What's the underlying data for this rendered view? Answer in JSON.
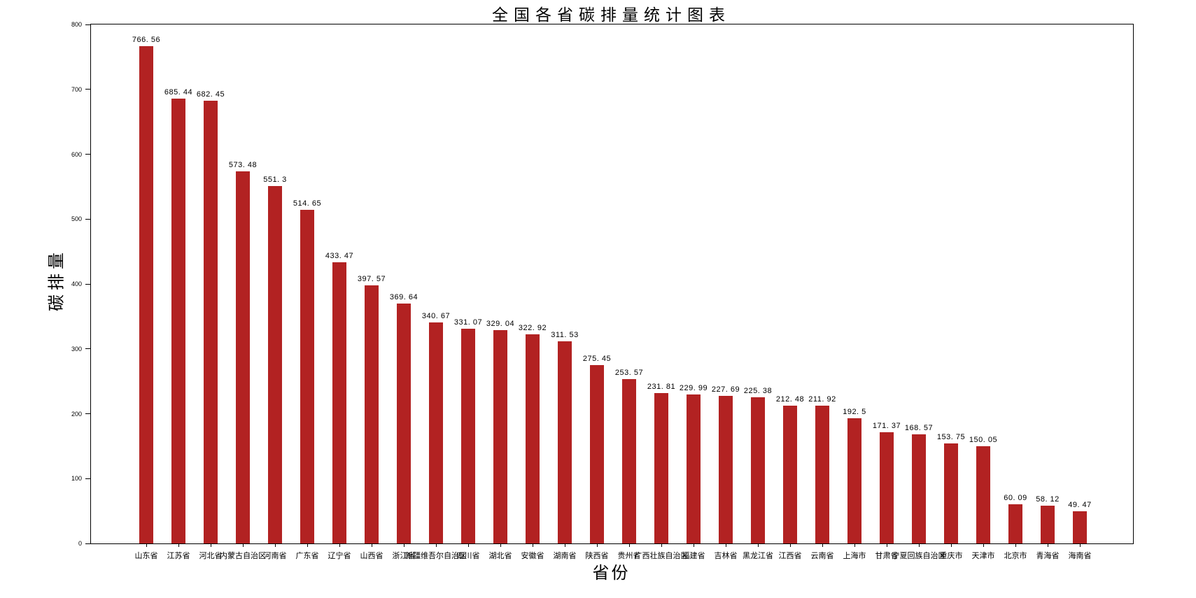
{
  "chart_data": {
    "type": "bar",
    "title": "全国各省碳排量统计图表",
    "xlabel": "省份",
    "ylabel": "碳排量",
    "bar_color": "#b22222",
    "text_color": "#000000",
    "background_color": "#ffffff",
    "grid": false,
    "legend": "none",
    "ylim": [
      0,
      800
    ],
    "y_ticks": [
      0,
      100,
      200,
      300,
      400,
      500,
      600,
      700,
      800
    ],
    "categories": [
      "山东省",
      "江苏省",
      "河北省",
      "内蒙古自治区",
      "河南省",
      "广东省",
      "辽宁省",
      "山西省",
      "浙江省",
      "新疆维吾尔自治区",
      "四川省",
      "湖北省",
      "安徽省",
      "湖南省",
      "陕西省",
      "贵州省",
      "广西壮族自治区",
      "福建省",
      "吉林省",
      "黑龙江省",
      "江西省",
      "云南省",
      "上海市",
      "甘肃省",
      "宁夏回族自治区",
      "重庆市",
      "天津市",
      "北京市",
      "青海省",
      "海南省"
    ],
    "values": [
      766.56,
      685.44,
      682.45,
      573.48,
      551.3,
      514.65,
      433.47,
      397.57,
      369.64,
      340.67,
      331.07,
      329.04,
      322.92,
      311.53,
      275.45,
      253.57,
      231.81,
      229.99,
      227.69,
      225.38,
      212.48,
      211.92,
      192.5,
      171.37,
      168.57,
      153.75,
      150.05,
      60.09,
      58.12,
      49.47
    ],
    "value_labels": [
      "766. 56",
      "685. 44",
      "682. 45",
      "573. 48",
      "551. 3",
      "514. 65",
      "433. 47",
      "397. 57",
      "369. 64",
      "340. 67",
      "331. 07",
      "329. 04",
      "322. 92",
      "311. 53",
      "275. 45",
      "253. 57",
      "231. 81",
      "229. 99",
      "227. 69",
      "225. 38",
      "212. 48",
      "211. 92",
      "192. 5",
      "171. 37",
      "168. 57",
      "153. 75",
      "150. 05",
      "60. 09",
      "58. 12",
      "49. 47"
    ]
  }
}
